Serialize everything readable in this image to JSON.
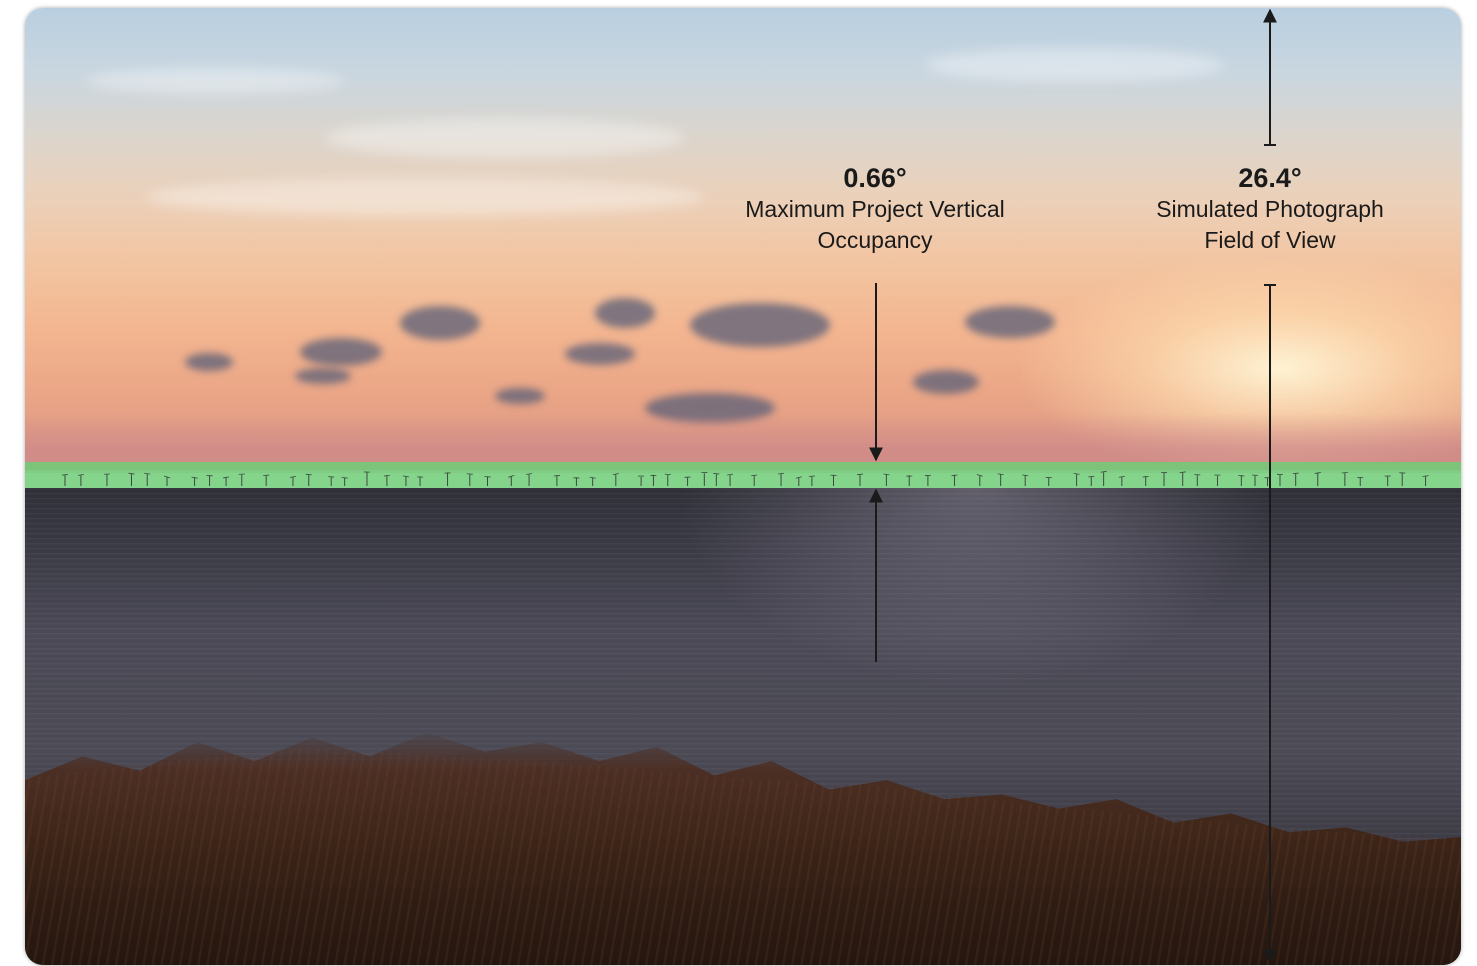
{
  "scene": {
    "description_elements": [
      "sunset-sky",
      "offshore-wind-turbines-on-horizon",
      "sea",
      "foreground-vegetation"
    ],
    "highlight_color": "#6ecd78",
    "sky_color": "#c9d6e0",
    "sea_color": "#4a4955"
  },
  "annotations": {
    "project_occupancy": {
      "value": "0.66°",
      "label_line1": "Maximum Project Vertical",
      "label_line2": "Occupancy"
    },
    "field_of_view": {
      "value": "26.4°",
      "label_line1": "Simulated Photograph",
      "label_line2": "Field of View"
    }
  }
}
